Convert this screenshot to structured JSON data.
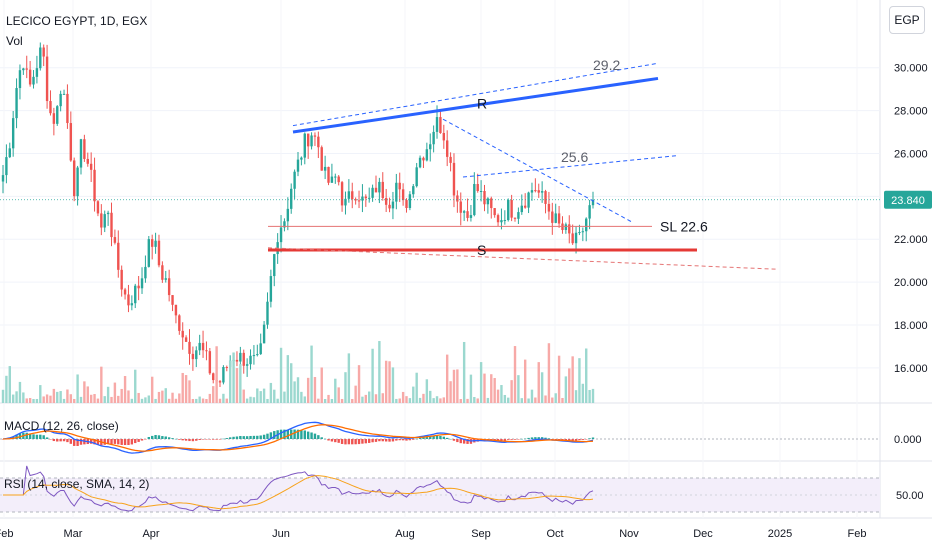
{
  "header": {
    "title": "LECICO EGYPT, 1D, EGX",
    "vol_label": "Vol",
    "macd_label": "MACD (12, 26, close)",
    "rsi_label": "RSI (14, close, SMA, 14, 2)",
    "currency_button": "EGP"
  },
  "chart_data": {
    "type": "candlestick",
    "title": "LECICO EGYPT, 1D, EGX",
    "x_tick_labels": [
      "Feb",
      "Mar",
      "Apr",
      "Jun",
      "Aug",
      "Sep",
      "Oct",
      "Nov",
      "Dec",
      "2025",
      "Feb"
    ],
    "price_axis": {
      "ticks": [
        16.0,
        18.0,
        20.0,
        22.0,
        24.0,
        26.0,
        28.0,
        30.0
      ],
      "tick_labels": [
        "16.000",
        "18.000",
        "20.000",
        "22.000",
        "24.000",
        "26.000",
        "28.000",
        "30.000"
      ],
      "ylim": [
        14.5,
        31.2
      ]
    },
    "last_price": 23.84,
    "last_price_label": "23.840",
    "macd_axis_label": "0.000",
    "rsi_axis_label": "50.00",
    "price_path": [
      25.0,
      26.5,
      29.0,
      30.5,
      29.0,
      30.0,
      31.0,
      28.0,
      27.5,
      29.5,
      27.0,
      24.0,
      26.5,
      25.5,
      24.0,
      22.5,
      23.5,
      21.5,
      20.0,
      19.0,
      19.5,
      20.0,
      21.5,
      22.0,
      20.5,
      20.0,
      18.5,
      18.0,
      17.2,
      16.8,
      17.0,
      16.4,
      15.5,
      15.3,
      16.0,
      16.6,
      16.5,
      16.4,
      16.3,
      16.2,
      18.0,
      20.5,
      22.5,
      23.0,
      24.5,
      25.5,
      26.5,
      27.0,
      26.5,
      25.0,
      24.5,
      25.0,
      23.5,
      24.0,
      24.3,
      23.7,
      23.8,
      24.5,
      24.2,
      23.8,
      24.6,
      23.5,
      24.0,
      25.5,
      26.0,
      26.5,
      27.5,
      27.2,
      26.0,
      24.0,
      23.5,
      23.0,
      24.5,
      24.0,
      23.5,
      23.0,
      23.0,
      23.5,
      23.3,
      23.7,
      24.0,
      24.5,
      24.0,
      23.5,
      23.0,
      22.5,
      22.3,
      21.8,
      22.0,
      23.0,
      23.84
    ],
    "annotations": {
      "resistance_label": "R",
      "support_label": "S",
      "stop_loss_label": "SL  22.6",
      "target_upper": "29.2",
      "target_mid": "25.6"
    },
    "colors": {
      "up": "#26a69a",
      "down": "#ef5350",
      "resistance": "#2962ff",
      "support": "#e53935",
      "macd": "#2962ff",
      "signal": "#ff6d00",
      "rsi": "#7e57c2",
      "rsi_ma": "#f7a21b",
      "price_tag": "#26a69a"
    },
    "grid": true
  }
}
